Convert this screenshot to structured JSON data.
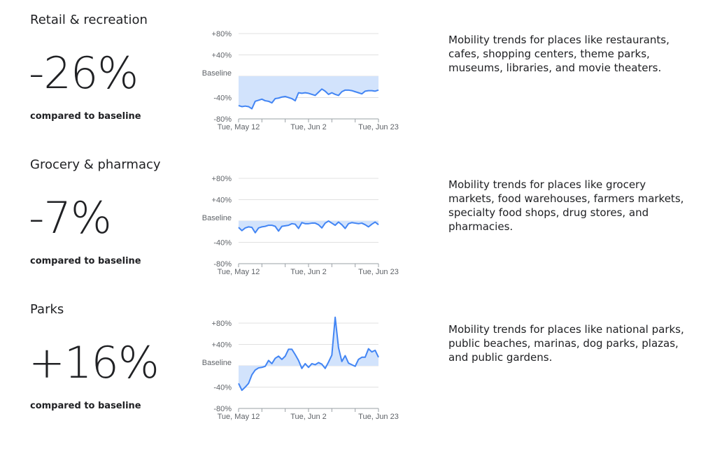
{
  "sections": [
    {
      "title": "Retail & recreation",
      "headline": "-26%",
      "caption": "compared to baseline",
      "description": [
        "Mobility trends for places like restaurants,",
        "cafes, shopping centers, theme parks,",
        "museums, libraries, and movie theaters."
      ]
    },
    {
      "title": "Grocery & pharmacy",
      "headline": "-7%",
      "caption": "compared to baseline",
      "description": [
        "Mobility trends for places like grocery",
        "markets, food warehouses, farmers markets,",
        "specialty food shops, drug stores, and",
        "pharmacies."
      ]
    },
    {
      "title": "Parks",
      "headline": "+16%",
      "caption": "compared to baseline",
      "description": [
        "Mobility trends for places like national parks,",
        "public beaches, marinas, dog parks, plazas,",
        "and public gardens."
      ]
    }
  ],
  "chart_data": [
    {
      "type": "line",
      "categories": [
        "Tue, May 12",
        null,
        null,
        null,
        null,
        null,
        null,
        null,
        null,
        null,
        null,
        null,
        null,
        null,
        null,
        null,
        null,
        null,
        null,
        null,
        null,
        "Tue, Jun 2",
        null,
        null,
        null,
        null,
        null,
        null,
        null,
        null,
        null,
        null,
        null,
        null,
        null,
        null,
        null,
        null,
        null,
        null,
        null,
        null,
        "Tue, Jun 23"
      ],
      "series": [
        {
          "color": "#4285f4",
          "values": [
            -55,
            -57,
            -56,
            -57,
            -61,
            -47,
            -45,
            -43,
            -46,
            -47,
            -50,
            -42,
            -41,
            -39,
            -38,
            -40,
            -42,
            -46,
            -31,
            -32,
            -31,
            -32,
            -34,
            -36,
            -30,
            -24,
            -28,
            -34,
            -31,
            -34,
            -36,
            -29,
            -26,
            -26,
            -27,
            -29,
            -31,
            -33,
            -28,
            -27,
            -27,
            -28,
            -26
          ]
        }
      ],
      "fill": "#d2e3fc",
      "ylim": [
        -80,
        80
      ],
      "yticks": [
        {
          "value": 80,
          "label": "+80%"
        },
        {
          "value": 40,
          "label": "+40%"
        },
        {
          "value": 0,
          "label": "Baseline"
        },
        {
          "value": -40,
          "label": "-40%"
        },
        {
          "value": -80,
          "label": "-80%"
        }
      ],
      "grid": true
    },
    {
      "type": "line",
      "categories": [
        "Tue, May 12",
        null,
        null,
        null,
        null,
        null,
        null,
        null,
        null,
        null,
        null,
        null,
        null,
        null,
        null,
        null,
        null,
        null,
        null,
        null,
        null,
        "Tue, Jun 2",
        null,
        null,
        null,
        null,
        null,
        null,
        null,
        null,
        null,
        null,
        null,
        null,
        null,
        null,
        null,
        null,
        null,
        null,
        null,
        null,
        "Tue, Jun 23"
      ],
      "series": [
        {
          "color": "#4285f4",
          "values": [
            -12,
            -18,
            -13,
            -11,
            -12,
            -22,
            -13,
            -11,
            -10,
            -8,
            -8,
            -10,
            -19,
            -10,
            -9,
            -8,
            -5,
            -6,
            -14,
            -3,
            -5,
            -5,
            -4,
            -4,
            -7,
            -13,
            -4,
            0,
            -4,
            -8,
            -2,
            -7,
            -14,
            -5,
            -3,
            -4,
            -5,
            -4,
            -7,
            -11,
            -6,
            -2,
            -7
          ]
        }
      ],
      "fill": "#d2e3fc",
      "ylim": [
        -80,
        80
      ],
      "yticks": [
        {
          "value": 80,
          "label": "+80%"
        },
        {
          "value": 40,
          "label": "+40%"
        },
        {
          "value": 0,
          "label": "Baseline"
        },
        {
          "value": -40,
          "label": "-40%"
        },
        {
          "value": -80,
          "label": "-80%"
        }
      ],
      "grid": true
    },
    {
      "type": "line",
      "categories": [
        "Tue, May 12",
        null,
        null,
        null,
        null,
        null,
        null,
        null,
        null,
        null,
        null,
        null,
        null,
        null,
        null,
        null,
        null,
        null,
        null,
        null,
        null,
        "Tue, Jun 2",
        null,
        null,
        null,
        null,
        null,
        null,
        null,
        null,
        null,
        null,
        null,
        null,
        null,
        null,
        null,
        null,
        null,
        null,
        null,
        null,
        "Tue, Jun 23"
      ],
      "series": [
        {
          "color": "#4285f4",
          "values": [
            -33,
            -46,
            -40,
            -33,
            -17,
            -8,
            -4,
            -3,
            -1,
            10,
            4,
            14,
            18,
            12,
            18,
            31,
            31,
            21,
            10,
            -5,
            4,
            -3,
            4,
            2,
            6,
            3,
            -5,
            7,
            20,
            91,
            34,
            8,
            19,
            5,
            2,
            -1,
            12,
            16,
            16,
            32,
            26,
            29,
            16
          ]
        }
      ],
      "fill": "#d2e3fc",
      "ylim": [
        -80,
        80
      ],
      "yticks": [
        {
          "value": 80,
          "label": "+80%"
        },
        {
          "value": 40,
          "label": "+40%"
        },
        {
          "value": 0,
          "label": "Baseline"
        },
        {
          "value": -40,
          "label": "-40%"
        },
        {
          "value": -80,
          "label": "-80%"
        }
      ],
      "grid": true
    }
  ]
}
